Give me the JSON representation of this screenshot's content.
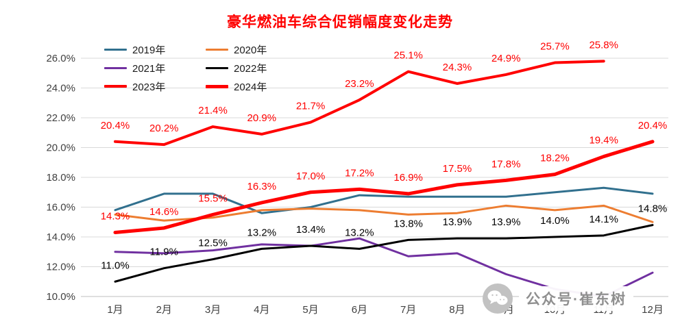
{
  "chart_data": {
    "type": "line",
    "title": "豪华燃油车综合促销幅度变化走势",
    "categories": [
      "1月",
      "2月",
      "3月",
      "4月",
      "5月",
      "6月",
      "7月",
      "8月",
      "9月",
      "10月",
      "11月",
      "12月"
    ],
    "ylim": [
      10.0,
      26.0
    ],
    "ytick_step": 2.0,
    "ytick_labels": [
      "10.0%",
      "12.0%",
      "14.0%",
      "16.0%",
      "18.0%",
      "20.0%",
      "22.0%",
      "24.0%",
      "26.0%"
    ],
    "grid": true,
    "legend_position": "top-left",
    "xlabel": "",
    "ylabel": "",
    "series": [
      {
        "name": "2019年",
        "color": "#31708e",
        "width": 3,
        "labels": false,
        "values": [
          15.8,
          16.9,
          16.9,
          15.6,
          16.0,
          16.8,
          16.7,
          16.7,
          16.7,
          17.0,
          17.3,
          16.9
        ]
      },
      {
        "name": "2020年",
        "color": "#ed7d31",
        "width": 3,
        "labels": false,
        "values": [
          15.5,
          15.1,
          15.3,
          15.8,
          15.9,
          15.8,
          15.5,
          15.6,
          16.1,
          15.8,
          16.1,
          15.0
        ]
      },
      {
        "name": "2021年",
        "color": "#7030a0",
        "width": 3,
        "labels": false,
        "values": [
          13.0,
          12.9,
          13.1,
          13.5,
          13.4,
          13.9,
          12.7,
          12.9,
          11.5,
          10.5,
          10.0,
          11.6
        ]
      },
      {
        "name": "2022年",
        "color": "#000000",
        "width": 3,
        "labels": true,
        "label_color": "#000000",
        "values": [
          11.0,
          11.9,
          12.5,
          13.2,
          13.4,
          13.2,
          13.8,
          13.9,
          13.9,
          14.0,
          14.1,
          14.8
        ]
      },
      {
        "name": "2023年",
        "color": "#ff0000",
        "width": 4,
        "labels": true,
        "label_color": "#ff0000",
        "values": [
          20.4,
          20.2,
          21.4,
          20.9,
          21.7,
          23.2,
          25.1,
          24.3,
          24.9,
          25.7,
          25.8,
          null
        ]
      },
      {
        "name": "2024年",
        "color": "#ff0000",
        "width": 5,
        "labels": true,
        "label_color": "#ff0000",
        "values": [
          14.3,
          14.6,
          15.5,
          16.3,
          17.0,
          17.2,
          16.9,
          17.5,
          17.8,
          18.2,
          19.4,
          20.4
        ]
      }
    ],
    "watermark": "公众号·崔东树"
  }
}
